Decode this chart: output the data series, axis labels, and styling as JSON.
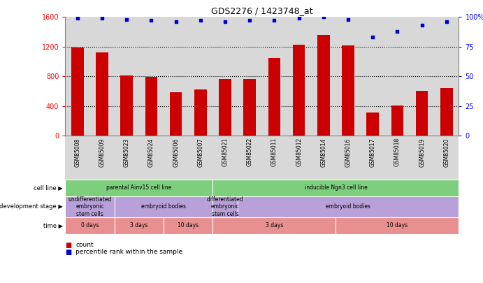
{
  "title": "GDS2276 / 1423748_at",
  "samples": [
    "GSM85008",
    "GSM85009",
    "GSM85023",
    "GSM85024",
    "GSM85006",
    "GSM85007",
    "GSM85021",
    "GSM85022",
    "GSM85011",
    "GSM85012",
    "GSM85014",
    "GSM85016",
    "GSM85017",
    "GSM85018",
    "GSM85019",
    "GSM85020"
  ],
  "counts": [
    1190,
    1120,
    810,
    790,
    590,
    620,
    770,
    770,
    1050,
    1230,
    1360,
    1220,
    310,
    410,
    610,
    640
  ],
  "percentiles": [
    99,
    99,
    98,
    97,
    96,
    97,
    96,
    97,
    97,
    99,
    100,
    98,
    83,
    88,
    93,
    96
  ],
  "bar_color": "#cc0000",
  "dot_color": "#0000cc",
  "ylim_left": [
    0,
    1600
  ],
  "ylim_right": [
    0,
    100
  ],
  "yticks_left": [
    0,
    400,
    800,
    1200,
    1600
  ],
  "yticks_right": [
    0,
    25,
    50,
    75,
    100
  ],
  "yticklabels_right": [
    "0",
    "25",
    "50",
    "75",
    "100%"
  ],
  "grid_values": [
    400,
    800,
    1200
  ],
  "background_color": "#ffffff",
  "bar_area_bg": "#d8d8d8",
  "cell_line_row": {
    "label": "cell line",
    "groups": [
      {
        "text": "parental Ainv15 cell line",
        "start": 0,
        "end": 6,
        "color": "#7dce7d"
      },
      {
        "text": "inducible Ngn3 cell line",
        "start": 6,
        "end": 16,
        "color": "#7dce7d"
      }
    ]
  },
  "dev_stage_row": {
    "label": "development stage",
    "groups": [
      {
        "text": "undifferentiated\nembryonic\nstem cells",
        "start": 0,
        "end": 2,
        "color": "#b8a0d8"
      },
      {
        "text": "embryoid bodies",
        "start": 2,
        "end": 6,
        "color": "#b8a0d8"
      },
      {
        "text": "differentiated\nembryonic\nstem cells",
        "start": 6,
        "end": 7,
        "color": "#b8a0d8"
      },
      {
        "text": "embryoid bodies",
        "start": 7,
        "end": 16,
        "color": "#b8a0d8"
      }
    ]
  },
  "time_row": {
    "label": "time",
    "groups": [
      {
        "text": "0 days",
        "start": 0,
        "end": 2,
        "color": "#e89090"
      },
      {
        "text": "3 days",
        "start": 2,
        "end": 4,
        "color": "#e89090"
      },
      {
        "text": "10 days",
        "start": 4,
        "end": 6,
        "color": "#e89090"
      },
      {
        "text": "3 days",
        "start": 6,
        "end": 11,
        "color": "#e89090"
      },
      {
        "text": "10 days",
        "start": 11,
        "end": 16,
        "color": "#e89090"
      }
    ]
  },
  "legend": [
    {
      "color": "#cc0000",
      "label": "count"
    },
    {
      "color": "#0000cc",
      "label": "percentile rank within the sample"
    }
  ]
}
